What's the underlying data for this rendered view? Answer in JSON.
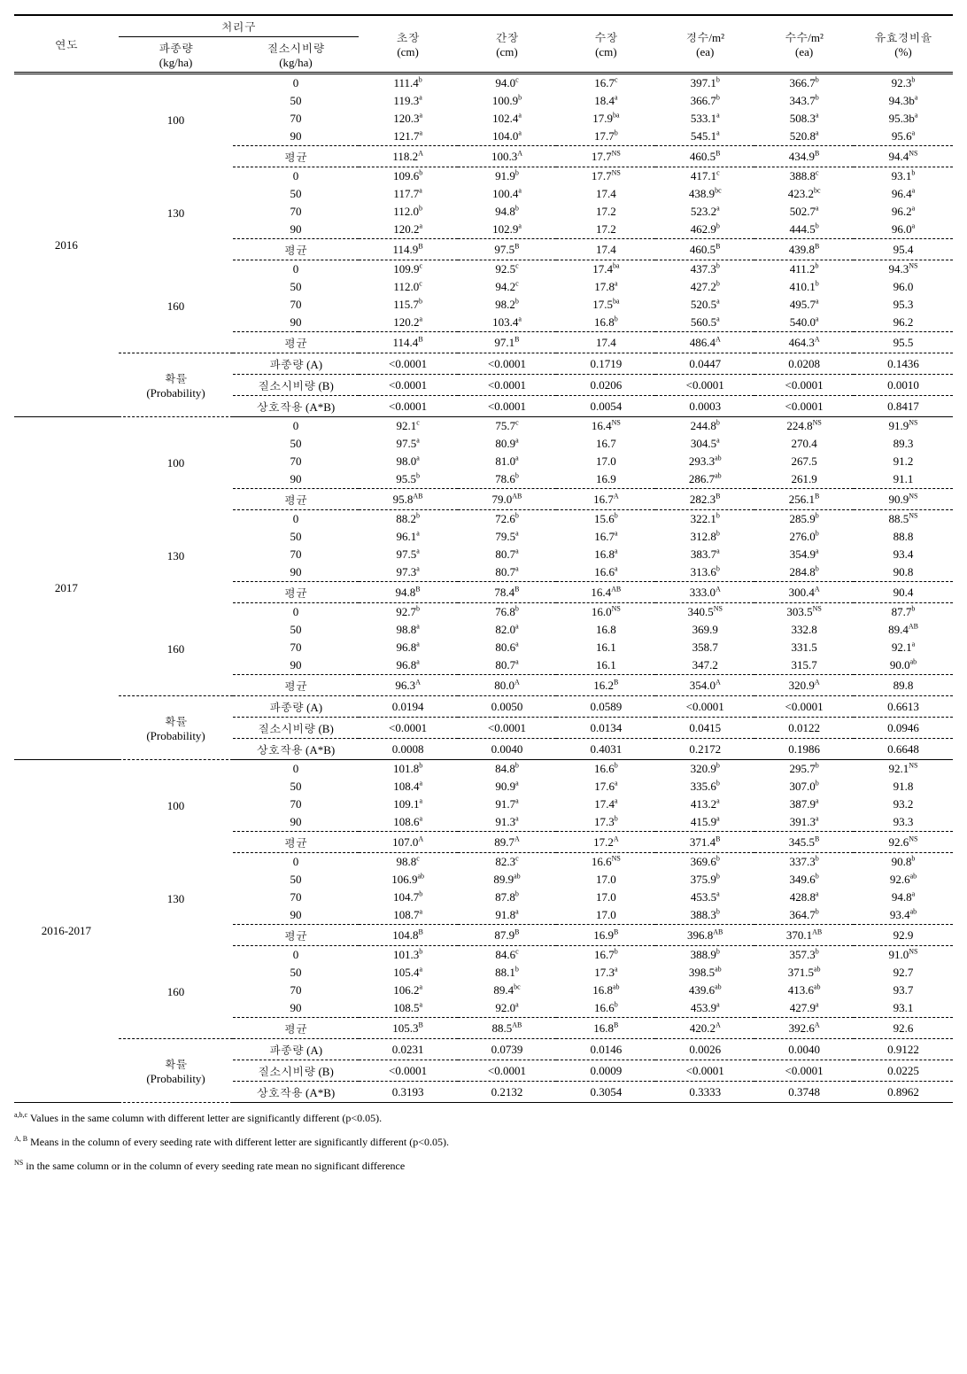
{
  "headers": {
    "year": "연도",
    "treatment": "처리구",
    "seeding": "파종량",
    "seeding_unit": "(kg/ha)",
    "nitrogen": "질소시비량",
    "nitrogen_unit": "(kg/ha)",
    "plant_len": "초장",
    "plant_len_unit": "(cm)",
    "stem_len": "간장",
    "stem_len_unit": "(cm)",
    "ear_len": "수장",
    "ear_len_unit": "(cm)",
    "stems_m2": "경수/m²",
    "stems_m2_unit": "(ea)",
    "ears_m2": "수수/m²",
    "ears_m2_unit": "(ea)",
    "eff_ratio": "유효경비율",
    "eff_ratio_unit": "(%)"
  },
  "avg_label": "평균",
  "prob_label": "확률",
  "prob_sub": "(Probability)",
  "prob_rows": {
    "a": "파종량 (A)",
    "b": "질소시비량 (B)",
    "ab": "상호작용 (A*B)"
  },
  "sections": [
    {
      "year": "2016",
      "blocks": [
        {
          "seed": "100",
          "rows": [
            [
              "0",
              "111.4",
              "b",
              "94.0",
              "c",
              "16.7",
              "c",
              "397.1",
              "b",
              "366.7",
              "b",
              "92.3",
              "b"
            ],
            [
              "50",
              "119.3",
              "a",
              "100.9",
              "b",
              "18.4",
              "a",
              "366.7",
              "b",
              "343.7",
              "b",
              "94.3b",
              "a"
            ],
            [
              "70",
              "120.3",
              "a",
              "102.4",
              "a",
              "17.9",
              "ba",
              "533.1",
              "a",
              "508.3",
              "a",
              "95.3b",
              "a"
            ],
            [
              "90",
              "121.7",
              "a",
              "104.0",
              "a",
              "17.7",
              "b",
              "545.1",
              "a",
              "520.8",
              "a",
              "95.6",
              "a"
            ],
            [
              "평균",
              "118.2",
              "A",
              "100.3",
              "A",
              "17.7",
              "NS",
              "460.5",
              "B",
              "434.9",
              "B",
              "94.4",
              "NS"
            ]
          ]
        },
        {
          "seed": "130",
          "rows": [
            [
              "0",
              "109.6",
              "b",
              "91.9",
              "b",
              "17.7",
              "NS",
              "417.1",
              "c",
              "388.8",
              "c",
              "93.1",
              "b"
            ],
            [
              "50",
              "117.7",
              "a",
              "100.4",
              "a",
              "17.4",
              "",
              "438.9",
              "bc",
              "423.2",
              "bc",
              "96.4",
              "a"
            ],
            [
              "70",
              "112.0",
              "b",
              "94.8",
              "b",
              "17.2",
              "",
              "523.2",
              "a",
              "502.7",
              "a",
              "96.2",
              "a"
            ],
            [
              "90",
              "120.2",
              "a",
              "102.9",
              "a",
              "17.2",
              "",
              "462.9",
              "b",
              "444.5",
              "b",
              "96.0",
              "a"
            ],
            [
              "평균",
              "114.9",
              "B",
              "97.5",
              "B",
              "17.4",
              "",
              "460.5",
              "B",
              "439.8",
              "B",
              "95.4",
              ""
            ]
          ]
        },
        {
          "seed": "160",
          "rows": [
            [
              "0",
              "109.9",
              "c",
              "92.5",
              "c",
              "17.4",
              "ba",
              "437.3",
              "b",
              "411.2",
              "b",
              "94.3",
              "NS"
            ],
            [
              "50",
              "112.0",
              "c",
              "94.2",
              "c",
              "17.8",
              "a",
              "427.2",
              "b",
              "410.1",
              "b",
              "96.0",
              ""
            ],
            [
              "70",
              "115.7",
              "b",
              "98.2",
              "b",
              "17.5",
              "ba",
              "520.5",
              "a",
              "495.7",
              "a",
              "95.3",
              ""
            ],
            [
              "90",
              "120.2",
              "a",
              "103.4",
              "a",
              "16.8",
              "b",
              "560.5",
              "a",
              "540.0",
              "a",
              "96.2",
              ""
            ],
            [
              "평균",
              "114.4",
              "B",
              "97.1",
              "B",
              "17.4",
              "",
              "486.4",
              "A",
              "464.3",
              "A",
              "95.5",
              ""
            ]
          ]
        }
      ],
      "prob": [
        [
          "<0.0001",
          "<0.0001",
          "0.1719",
          "0.0447",
          "0.0208",
          "0.1436"
        ],
        [
          "<0.0001",
          "<0.0001",
          "0.0206",
          "<0.0001",
          "<0.0001",
          "0.0010"
        ],
        [
          "<0.0001",
          "<0.0001",
          "0.0054",
          "0.0003",
          "<0.0001",
          "0.8417"
        ]
      ]
    },
    {
      "year": "2017",
      "blocks": [
        {
          "seed": "100",
          "rows": [
            [
              "0",
              "92.1",
              "c",
              "75.7",
              "c",
              "16.4",
              "NS",
              "244.8",
              "b",
              "224.8",
              "NS",
              "91.9",
              "NS"
            ],
            [
              "50",
              "97.5",
              "a",
              "80.9",
              "a",
              "16.7",
              "",
              "304.5",
              "a",
              "270.4",
              "",
              "89.3",
              ""
            ],
            [
              "70",
              "98.0",
              "a",
              "81.0",
              "a",
              "17.0",
              "",
              "293.3",
              "ab",
              "267.5",
              "",
              "91.2",
              ""
            ],
            [
              "90",
              "95.5",
              "b",
              "78.6",
              "b",
              "16.9",
              "",
              "286.7",
              "ab",
              "261.9",
              "",
              "91.1",
              ""
            ],
            [
              "평균",
              "95.8",
              "AB",
              "79.0",
              "AB",
              "16.7",
              "A",
              "282.3",
              "B",
              "256.1",
              "B",
              "90.9",
              "NS"
            ]
          ]
        },
        {
          "seed": "130",
          "rows": [
            [
              "0",
              "88.2",
              "b",
              "72.6",
              "b",
              "15.6",
              "b",
              "322.1",
              "b",
              "285.9",
              "b",
              "88.5",
              "NS"
            ],
            [
              "50",
              "96.1",
              "a",
              "79.5",
              "a",
              "16.7",
              "a",
              "312.8",
              "b",
              "276.0",
              "b",
              "88.8",
              ""
            ],
            [
              "70",
              "97.5",
              "a",
              "80.7",
              "a",
              "16.8",
              "a",
              "383.7",
              "a",
              "354.9",
              "a",
              "93.4",
              ""
            ],
            [
              "90",
              "97.3",
              "a",
              "80.7",
              "a",
              "16.6",
              "a",
              "313.6",
              "b",
              "284.8",
              "b",
              "90.8",
              ""
            ],
            [
              "평균",
              "94.8",
              "B",
              "78.4",
              "B",
              "16.4",
              "AB",
              "333.0",
              "A",
              "300.4",
              "A",
              "90.4",
              ""
            ]
          ]
        },
        {
          "seed": "160",
          "rows": [
            [
              "0",
              "92.7",
              "b",
              "76.8",
              "b",
              "16.0",
              "NS",
              "340.5",
              "NS",
              "303.5",
              "NS",
              "87.7",
              "b"
            ],
            [
              "50",
              "98.8",
              "a",
              "82.0",
              "a",
              "16.8",
              "",
              "369.9",
              "",
              "332.8",
              "",
              "89.4",
              "AB"
            ],
            [
              "70",
              "96.8",
              "a",
              "80.6",
              "a",
              "16.1",
              "",
              "358.7",
              "",
              "331.5",
              "",
              "92.1",
              "a"
            ],
            [
              "90",
              "96.8",
              "a",
              "80.7",
              "a",
              "16.1",
              "",
              "347.2",
              "",
              "315.7",
              "",
              "90.0",
              "ab"
            ],
            [
              "평균",
              "96.3",
              "A",
              "80.0",
              "A",
              "16.2",
              "B",
              "354.0",
              "A",
              "320.9",
              "A",
              "89.8",
              ""
            ]
          ]
        }
      ],
      "prob": [
        [
          "0.0194",
          "0.0050",
          "0.0589",
          "<0.0001",
          "<0.0001",
          "0.6613"
        ],
        [
          "<0.0001",
          "<0.0001",
          "0.0134",
          "0.0415",
          "0.0122",
          "0.0946"
        ],
        [
          "0.0008",
          "0.0040",
          "0.4031",
          "0.2172",
          "0.1986",
          "0.6648"
        ]
      ]
    },
    {
      "year": "2016-2017",
      "blocks": [
        {
          "seed": "100",
          "rows": [
            [
              "0",
              "101.8",
              "b",
              "84.8",
              "b",
              "16.6",
              "b",
              "320.9",
              "b",
              "295.7",
              "b",
              "92.1",
              "NS"
            ],
            [
              "50",
              "108.4",
              "a",
              "90.9",
              "a",
              "17.6",
              "a",
              "335.6",
              "b",
              "307.0",
              "b",
              "91.8",
              ""
            ],
            [
              "70",
              "109.1",
              "a",
              "91.7",
              "a",
              "17.4",
              "a",
              "413.2",
              "a",
              "387.9",
              "a",
              "93.2",
              ""
            ],
            [
              "90",
              "108.6",
              "a",
              "91.3",
              "a",
              "17.3",
              "b",
              "415.9",
              "a",
              "391.3",
              "a",
              "93.3",
              ""
            ],
            [
              "평균",
              "107.0",
              "A",
              "89.7",
              "A",
              "17.2",
              "A",
              "371.4",
              "B",
              "345.5",
              "B",
              "92.6",
              "NS"
            ]
          ]
        },
        {
          "seed": "130",
          "rows": [
            [
              "0",
              "98.8",
              "c",
              "82.3",
              "c",
              "16.6",
              "NS",
              "369.6",
              "b",
              "337.3",
              "b",
              "90.8",
              "b"
            ],
            [
              "50",
              "106.9",
              "ab",
              "89.9",
              "ab",
              "17.0",
              "",
              "375.9",
              "b",
              "349.6",
              "b",
              "92.6",
              "ab"
            ],
            [
              "70",
              "104.7",
              "b",
              "87.8",
              "b",
              "17.0",
              "",
              "453.5",
              "a",
              "428.8",
              "a",
              "94.8",
              "a"
            ],
            [
              "90",
              "108.7",
              "a",
              "91.8",
              "a",
              "17.0",
              "",
              "388.3",
              "b",
              "364.7",
              "b",
              "93.4",
              "ab"
            ],
            [
              "평균",
              "104.8",
              "B",
              "87.9",
              "B",
              "16.9",
              "B",
              "396.8",
              "AB",
              "370.1",
              "AB",
              "92.9",
              ""
            ]
          ]
        },
        {
          "seed": "160",
          "rows": [
            [
              "0",
              "101.3",
              "b",
              "84.6",
              "c",
              "16.7",
              "b",
              "388.9",
              "b",
              "357.3",
              "b",
              "91.0",
              "NS"
            ],
            [
              "50",
              "105.4",
              "a",
              "88.1",
              "b",
              "17.3",
              "a",
              "398.5",
              "ab",
              "371.5",
              "ab",
              "92.7",
              ""
            ],
            [
              "70",
              "106.2",
              "a",
              "89.4",
              "bc",
              "16.8",
              "ab",
              "439.6",
              "ab",
              "413.6",
              "ab",
              "93.7",
              ""
            ],
            [
              "90",
              "108.5",
              "a",
              "92.0",
              "a",
              "16.6",
              "b",
              "453.9",
              "a",
              "427.9",
              "a",
              "93.1",
              ""
            ],
            [
              "평균",
              "105.3",
              "B",
              "88.5",
              "AB",
              "16.8",
              "B",
              "420.2",
              "A",
              "392.6",
              "A",
              "92.6",
              ""
            ]
          ]
        }
      ],
      "prob": [
        [
          "0.0231",
          "0.0739",
          "0.0146",
          "0.0026",
          "0.0040",
          "0.9122"
        ],
        [
          "<0.0001",
          "<0.0001",
          "0.0009",
          "<0.0001",
          "<0.0001",
          "0.0225"
        ],
        [
          "0.3193",
          "0.2132",
          "0.3054",
          "0.3333",
          "0.3748",
          "0.8962"
        ]
      ]
    }
  ],
  "footnotes": {
    "f1_sup": "a,b,c",
    "f1": "Values in the same column with different letter are significantly different (p<0.05).",
    "f2_sup": "A, B",
    "f2": "Means in the column of every seeding rate with different letter are significantly different (p<0.05).",
    "f3_sup": "NS",
    "f3": "in the same column or in the column of every seeding rate mean no significant difference"
  }
}
